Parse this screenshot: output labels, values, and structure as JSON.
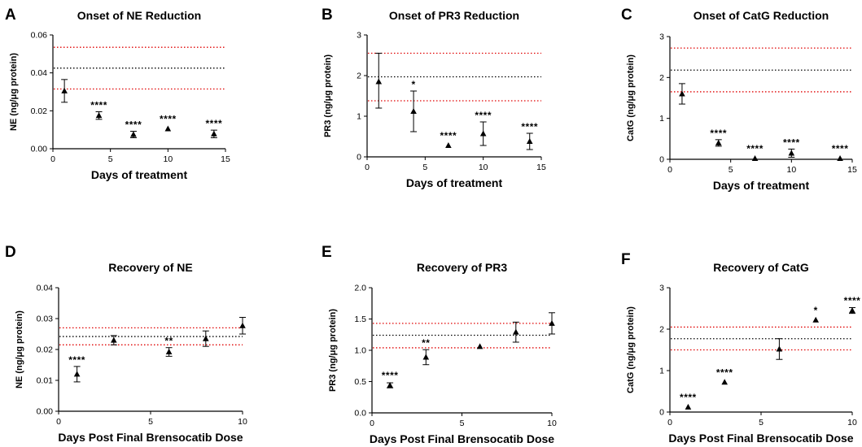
{
  "chart_data": [
    {
      "panel_label": "A",
      "type": "scatter",
      "title": "Onset of NE Reduction",
      "xlabel": "Days of treatment",
      "ylabel": "NE (ng/μg protein)",
      "xlim": [
        0,
        15
      ],
      "ylim": [
        0,
        0.06
      ],
      "xticks": [
        0,
        5,
        10,
        15
      ],
      "xtick_labels": [
        "0",
        "5",
        "10",
        "15"
      ],
      "yticks": [
        0,
        0.02,
        0.04,
        0.06
      ],
      "ytick_labels": [
        "0.00",
        "0.02",
        "0.04",
        "0.06"
      ],
      "reference_lines": [
        {
          "value": 0.0425,
          "color": "#000000"
        },
        {
          "value": 0.0535,
          "color": "#e00000"
        },
        {
          "value": 0.0315,
          "color": "#e00000"
        }
      ],
      "points": [
        {
          "x": 1,
          "y": 0.0305,
          "err_low": 0.0245,
          "err_high": 0.0365,
          "annotation": ""
        },
        {
          "x": 4,
          "y": 0.0175,
          "err_low": 0.0155,
          "err_high": 0.0195,
          "annotation": "****"
        },
        {
          "x": 7,
          "y": 0.0075,
          "err_low": 0.0058,
          "err_high": 0.0092,
          "annotation": "****"
        },
        {
          "x": 10,
          "y": 0.0105,
          "err_low": 0.0105,
          "err_high": 0.0105,
          "annotation": "****"
        },
        {
          "x": 14,
          "y": 0.0078,
          "err_low": 0.0058,
          "err_high": 0.0098,
          "annotation": "****"
        }
      ]
    },
    {
      "panel_label": "B",
      "type": "scatter",
      "title": "Onset of PR3 Reduction",
      "xlabel": "Days of treatment",
      "ylabel": "PR3 (ng/μg protein)",
      "xlim": [
        0,
        15
      ],
      "ylim": [
        0,
        3
      ],
      "xticks": [
        0,
        5,
        10,
        15
      ],
      "xtick_labels": [
        "0",
        "5",
        "10",
        "15"
      ],
      "yticks": [
        0,
        1,
        2,
        3
      ],
      "ytick_labels": [
        "0",
        "1",
        "2",
        "3"
      ],
      "reference_lines": [
        {
          "value": 1.97,
          "color": "#000000"
        },
        {
          "value": 2.55,
          "color": "#e00000"
        },
        {
          "value": 1.38,
          "color": "#e00000"
        }
      ],
      "points": [
        {
          "x": 1,
          "y": 1.85,
          "err_low": 1.2,
          "err_high": 2.55,
          "annotation": ""
        },
        {
          "x": 4,
          "y": 1.12,
          "err_low": 0.62,
          "err_high": 1.62,
          "annotation": "*"
        },
        {
          "x": 7,
          "y": 0.28,
          "err_low": 0.28,
          "err_high": 0.28,
          "annotation": "****"
        },
        {
          "x": 10,
          "y": 0.57,
          "err_low": 0.28,
          "err_high": 0.86,
          "annotation": "****"
        },
        {
          "x": 14,
          "y": 0.38,
          "err_low": 0.18,
          "err_high": 0.58,
          "annotation": "****"
        }
      ]
    },
    {
      "panel_label": "C",
      "type": "scatter",
      "title": "Onset of CatG Reduction",
      "xlabel": "Days of treatment",
      "ylabel": "CatG (ng/μg protein)",
      "xlim": [
        0,
        15
      ],
      "ylim": [
        0,
        3
      ],
      "xticks": [
        0,
        5,
        10,
        15
      ],
      "xtick_labels": [
        "0",
        "5",
        "10",
        "15"
      ],
      "yticks": [
        0,
        1,
        2,
        3
      ],
      "ytick_labels": [
        "0",
        "1",
        "2",
        "3"
      ],
      "reference_lines": [
        {
          "value": 2.18,
          "color": "#000000"
        },
        {
          "value": 2.72,
          "color": "#e00000"
        },
        {
          "value": 1.65,
          "color": "#e00000"
        }
      ],
      "points": [
        {
          "x": 1,
          "y": 1.6,
          "err_low": 1.35,
          "err_high": 1.85,
          "annotation": ""
        },
        {
          "x": 4,
          "y": 0.4,
          "err_low": 0.32,
          "err_high": 0.48,
          "annotation": "****"
        },
        {
          "x": 7,
          "y": 0.02,
          "err_low": 0.02,
          "err_high": 0.02,
          "annotation": "****"
        },
        {
          "x": 10,
          "y": 0.15,
          "err_low": 0.05,
          "err_high": 0.25,
          "annotation": "****"
        },
        {
          "x": 14,
          "y": 0.02,
          "err_low": 0.02,
          "err_high": 0.02,
          "annotation": "****"
        }
      ]
    },
    {
      "panel_label": "D",
      "type": "scatter",
      "title": "Recovery of NE",
      "xlabel": "Days Post Final Brensocatib Dose",
      "ylabel": "NE (ng/μg protein)",
      "xlim": [
        0,
        10
      ],
      "ylim": [
        0,
        0.04
      ],
      "xticks": [
        0,
        5,
        10
      ],
      "xtick_labels": [
        "0",
        "5",
        "10"
      ],
      "yticks": [
        0,
        0.01,
        0.02,
        0.03,
        0.04
      ],
      "ytick_labels": [
        "0.00",
        "0.01",
        "0.02",
        "0.03",
        "0.04"
      ],
      "reference_lines": [
        {
          "value": 0.0242,
          "color": "#000000"
        },
        {
          "value": 0.027,
          "color": "#e00000"
        },
        {
          "value": 0.0215,
          "color": "#e00000"
        }
      ],
      "points": [
        {
          "x": 1,
          "y": 0.012,
          "err_low": 0.0095,
          "err_high": 0.0145,
          "annotation": "****"
        },
        {
          "x": 3,
          "y": 0.023,
          "err_low": 0.0215,
          "err_high": 0.0245,
          "annotation": ""
        },
        {
          "x": 6,
          "y": 0.0192,
          "err_low": 0.0178,
          "err_high": 0.0206,
          "annotation": "**"
        },
        {
          "x": 8,
          "y": 0.0235,
          "err_low": 0.021,
          "err_high": 0.026,
          "annotation": ""
        },
        {
          "x": 10,
          "y": 0.0277,
          "err_low": 0.025,
          "err_high": 0.0304,
          "annotation": ""
        }
      ]
    },
    {
      "panel_label": "E",
      "type": "scatter",
      "title": "Recovery of PR3",
      "xlabel": "Days Post Final Brensocatib Dose",
      "ylabel": "PR3 (ng/μg protein)",
      "xlim": [
        0,
        10
      ],
      "ylim": [
        0,
        2
      ],
      "xticks": [
        0,
        5,
        10
      ],
      "xtick_labels": [
        "0",
        "5",
        "10"
      ],
      "yticks": [
        0,
        0.5,
        1,
        1.5,
        2
      ],
      "ytick_labels": [
        "0.0",
        "0.5",
        "1.0",
        "1.5",
        "2.0"
      ],
      "reference_lines": [
        {
          "value": 1.24,
          "color": "#000000"
        },
        {
          "value": 1.43,
          "color": "#e00000"
        },
        {
          "value": 1.04,
          "color": "#e00000"
        }
      ],
      "points": [
        {
          "x": 1,
          "y": 0.44,
          "err_low": 0.4,
          "err_high": 0.48,
          "annotation": "****"
        },
        {
          "x": 3,
          "y": 0.89,
          "err_low": 0.77,
          "err_high": 1.01,
          "annotation": "**"
        },
        {
          "x": 6,
          "y": 1.06,
          "err_low": 1.06,
          "err_high": 1.06,
          "annotation": ""
        },
        {
          "x": 8,
          "y": 1.29,
          "err_low": 1.13,
          "err_high": 1.45,
          "annotation": ""
        },
        {
          "x": 10,
          "y": 1.43,
          "err_low": 1.26,
          "err_high": 1.6,
          "annotation": ""
        }
      ]
    },
    {
      "panel_label": "F",
      "type": "scatter",
      "title": "Recovery of CatG",
      "xlabel": "Days Post Final Brensocatib Dose",
      "ylabel": "CatG (ng/μg protein)",
      "xlim": [
        0,
        10
      ],
      "ylim": [
        0,
        3
      ],
      "xticks": [
        0,
        5,
        10
      ],
      "xtick_labels": [
        "0",
        "5",
        "10"
      ],
      "yticks": [
        0,
        1,
        2,
        3
      ],
      "ytick_labels": [
        "0",
        "1",
        "2",
        "3"
      ],
      "reference_lines": [
        {
          "value": 1.77,
          "color": "#000000"
        },
        {
          "value": 2.05,
          "color": "#e00000"
        },
        {
          "value": 1.5,
          "color": "#e00000"
        }
      ],
      "points": [
        {
          "x": 1,
          "y": 0.12,
          "err_low": 0.12,
          "err_high": 0.12,
          "annotation": "****"
        },
        {
          "x": 3,
          "y": 0.72,
          "err_low": 0.72,
          "err_high": 0.72,
          "annotation": "****"
        },
        {
          "x": 6,
          "y": 1.52,
          "err_low": 1.27,
          "err_high": 1.77,
          "annotation": ""
        },
        {
          "x": 8,
          "y": 2.22,
          "err_low": 2.22,
          "err_high": 2.22,
          "annotation": "*"
        },
        {
          "x": 10,
          "y": 2.45,
          "err_low": 2.38,
          "err_high": 2.52,
          "annotation": "****"
        }
      ]
    }
  ]
}
